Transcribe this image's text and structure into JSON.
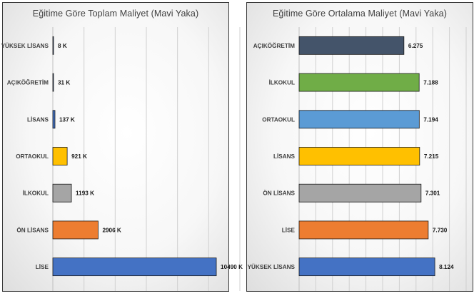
{
  "chart_data": [
    {
      "type": "bar",
      "orientation": "horizontal",
      "title": "Eğitime Göre Toplam Maliyet (Mavi Yaka)",
      "categories": [
        "YÜKSEK LİSANS",
        "AÇIKÖĞRETİM",
        "LİSANS",
        "ORTAOKUL",
        "İLKOKUL",
        "ÖN LİSANS",
        "LİSE"
      ],
      "values": [
        8,
        31,
        137,
        921,
        1193,
        2906,
        10490
      ],
      "data_labels": [
        "8 K",
        "31 K",
        "137 K",
        "921 K",
        "1193 K",
        "2906 K",
        "10490 K"
      ],
      "colors": [
        "#4472c4",
        "#4472c4",
        "#4472c4",
        "#ffc000",
        "#a5a5a5",
        "#ed7d31",
        "#4472c4"
      ],
      "xlim": [
        0,
        12000
      ],
      "grid": true,
      "legend": "none"
    },
    {
      "type": "bar",
      "orientation": "horizontal",
      "title": "Eğitime Göre Ortalama Maliyet (Mavi Yaka)",
      "categories": [
        "AÇIKÖĞRETİM",
        "İLKOKUL",
        "ORTAOKUL",
        "LİSANS",
        "ÖN LİSANS",
        "LİSE",
        "YÜKSEK LİSANS"
      ],
      "values": [
        6.275,
        7.188,
        7.194,
        7.215,
        7.301,
        7.73,
        8.124
      ],
      "data_labels": [
        "6.275",
        "7.188",
        "7.194",
        "7.215",
        "7.301",
        "7.730",
        "8.124"
      ],
      "colors": [
        "#44546a",
        "#70ad47",
        "#5b9bd5",
        "#ffc000",
        "#a5a5a5",
        "#ed7d31",
        "#4472c4"
      ],
      "xlim": [
        0,
        10
      ],
      "grid": true,
      "legend": "none"
    }
  ]
}
